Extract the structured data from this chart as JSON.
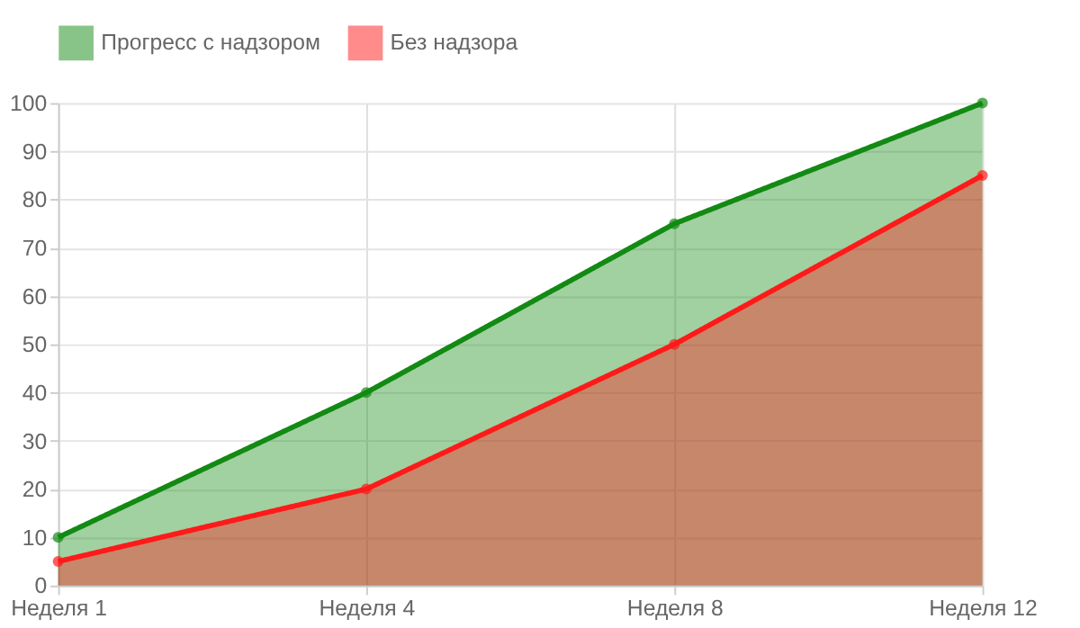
{
  "chart_data": {
    "type": "area",
    "categories": [
      "Неделя 1",
      "Неделя 4",
      "Неделя 8",
      "Неделя 12"
    ],
    "series": [
      {
        "name": "Прогресс с надзором",
        "color": "#138a13",
        "values": [
          10,
          40,
          75,
          100
        ]
      },
      {
        "name": "Без надзора",
        "color": "#ff1a1a",
        "values": [
          5,
          20,
          50,
          85
        ]
      }
    ],
    "ylim": [
      0,
      100
    ],
    "yticks": [
      0,
      10,
      20,
      30,
      40,
      50,
      60,
      70,
      80,
      90,
      100
    ],
    "grid": true,
    "legend": "top",
    "marker": "circle"
  }
}
